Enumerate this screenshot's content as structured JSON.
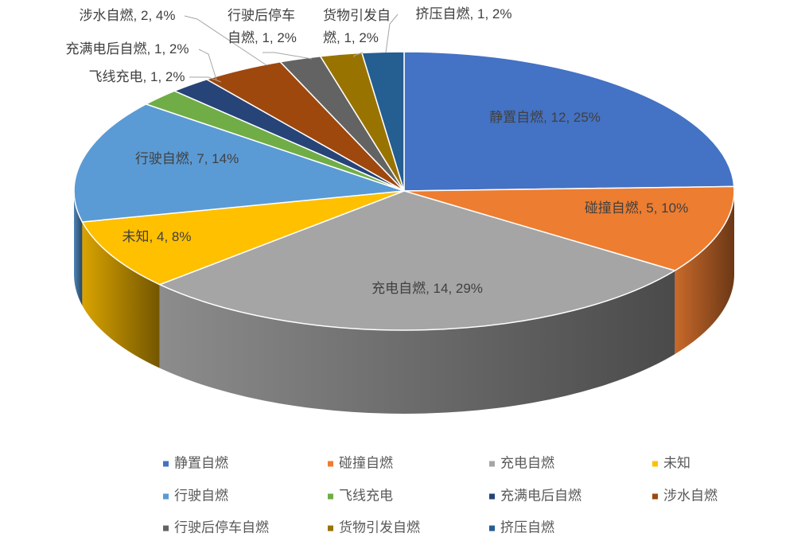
{
  "chart_data": {
    "type": "pie3d",
    "categories": [
      "静置自燃",
      "碰撞自燃",
      "充电自燃",
      "未知",
      "行驶自燃",
      "飞线充电",
      "充满电后自燃",
      "涉水自燃",
      "行驶后停车自燃",
      "货物引发自燃",
      "挤压自燃"
    ],
    "values": [
      12,
      5,
      14,
      4,
      7,
      1,
      1,
      2,
      1,
      1,
      1
    ],
    "value_labels": [
      "静置自燃, 12, 25%",
      "碰撞自燃, 5, 10%",
      "充电自燃, 14, 29%",
      "未知, 4, 8%",
      "行驶自燃, 7, 14%",
      "飞线充电, 1, 2%",
      "充满电后自燃, 1, 2%",
      "涉水自燃, 2, 4%",
      "行驶后停车自燃, 1, 2%",
      "货物引发自燃, 1, 2%",
      "挤压自燃, 1, 2%"
    ],
    "colors": [
      "#4472c4",
      "#ed7d31",
      "#a5a5a5",
      "#ffc000",
      "#5b9bd5",
      "#70ad47",
      "#264478",
      "#9e480e",
      "#636363",
      "#997300",
      "#255e91"
    ],
    "legend": "bottom"
  }
}
